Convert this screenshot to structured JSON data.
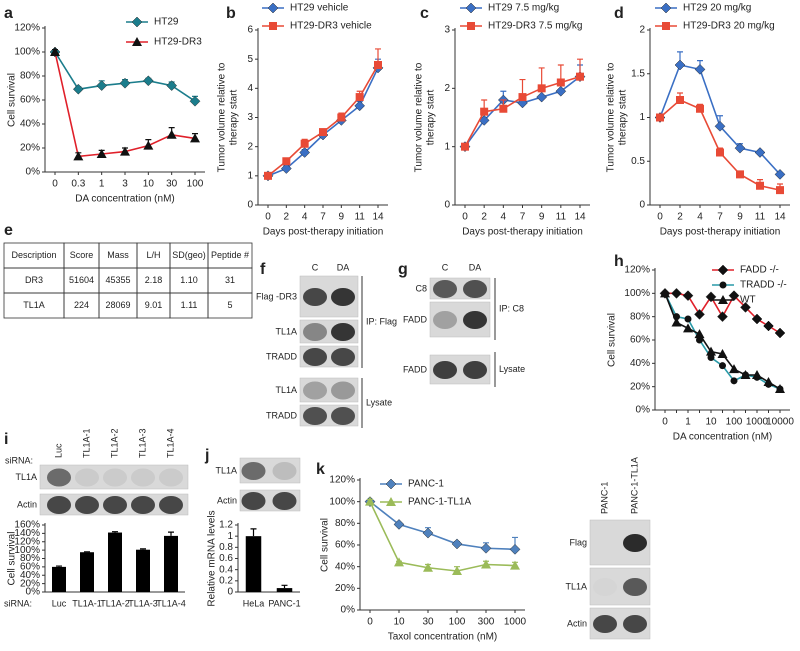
{
  "chart_data": [
    {
      "label": "a",
      "type": "line",
      "ylabel": "Cell survival",
      "xlabel": "DA concentration (nM)",
      "categories": [
        "0",
        "0.3",
        "1",
        "3",
        "10",
        "30",
        "100"
      ],
      "ylim": [
        0,
        120
      ],
      "yticks": [
        {
          "value": 0,
          "label": "0%"
        },
        {
          "value": 20,
          "label": "20%"
        },
        {
          "value": 40,
          "label": "40%"
        },
        {
          "value": 60,
          "label": "60%"
        },
        {
          "value": 80,
          "label": "80%"
        },
        {
          "value": 100,
          "label": "100%"
        },
        {
          "value": 120,
          "label": "120%"
        }
      ],
      "series": [
        {
          "name": "HT29",
          "color": "#1b7d8c",
          "marker": "diamond",
          "marker_color": "#1b7d8c",
          "values": [
            100,
            69,
            72,
            74,
            76,
            72,
            59
          ],
          "errors": [
            2,
            2,
            4,
            3,
            2,
            3,
            4
          ]
        },
        {
          "name": "HT29-DR3",
          "color": "#e0202a",
          "marker": "triangle",
          "marker_color": "#111111",
          "values": [
            100,
            13,
            15,
            17,
            22,
            31,
            28
          ],
          "errors": [
            2,
            3,
            3,
            3,
            5,
            6,
            4
          ]
        }
      ]
    },
    {
      "label": "b",
      "type": "line",
      "ylabel": [
        "Tumor volume relative to",
        "therapy start"
      ],
      "xlabel": "Days post-therapy initiation",
      "categories": [
        "0",
        "2",
        "4",
        "7",
        "9",
        "11",
        "14"
      ],
      "ylim": [
        0,
        6
      ],
      "yticks": [
        0,
        1,
        2,
        3,
        4,
        5,
        6
      ],
      "series": [
        {
          "name": "HT29 vehicle",
          "color": "#3a6fc4",
          "marker": "diamond",
          "values": [
            1,
            1.25,
            1.8,
            2.4,
            2.9,
            3.4,
            4.7
          ],
          "errors": [
            0.05,
            0.1,
            0.1,
            0.1,
            0.1,
            0.15,
            0.3
          ]
        },
        {
          "name": "HT29-DR3 vehicle",
          "color": "#e84a36",
          "marker": "square",
          "values": [
            1,
            1.5,
            2.1,
            2.5,
            3.0,
            3.7,
            4.8
          ],
          "errors": [
            0.05,
            0.1,
            0.15,
            0.1,
            0.15,
            0.2,
            0.55
          ]
        }
      ]
    },
    {
      "label": "c",
      "type": "line",
      "ylabel": [
        "Tumor volume relative to",
        "therapy start"
      ],
      "xlabel": "Days post-therapy initiation",
      "categories": [
        "0",
        "2",
        "4",
        "7",
        "9",
        "11",
        "14"
      ],
      "ylim": [
        0,
        3
      ],
      "yticks": [
        0,
        1,
        2,
        3
      ],
      "series": [
        {
          "name": "HT29 7.5 mg/kg",
          "color": "#3a6fc4",
          "marker": "diamond",
          "values": [
            1,
            1.45,
            1.8,
            1.75,
            1.85,
            1.95,
            2.2
          ],
          "errors": [
            0.02,
            0.1,
            0.15,
            0.1,
            0.15,
            0.15,
            0.2
          ]
        },
        {
          "name": "HT29-DR3 7.5 mg/kg",
          "color": "#e84a36",
          "marker": "square",
          "values": [
            1,
            1.6,
            1.65,
            1.85,
            2.0,
            2.1,
            2.2
          ],
          "errors": [
            0.02,
            0.2,
            0.15,
            0.3,
            0.35,
            0.3,
            0.3
          ]
        }
      ]
    },
    {
      "label": "d",
      "type": "line",
      "ylabel": [
        "Tumor volume relative to",
        "therapy start"
      ],
      "xlabel": "Days post-therapy initiation",
      "categories": [
        "0",
        "2",
        "4",
        "7",
        "9",
        "11",
        "14"
      ],
      "ylim": [
        0,
        2
      ],
      "yticks": [
        0,
        0.5,
        1,
        1.5,
        2
      ],
      "series": [
        {
          "name": "HT29 20 mg/kg",
          "color": "#3a6fc4",
          "marker": "diamond",
          "values": [
            1,
            1.6,
            1.55,
            0.9,
            0.65,
            0.6,
            0.35
          ],
          "errors": [
            0.02,
            0.15,
            0.1,
            0.12,
            0.05,
            0.02,
            0.02
          ]
        },
        {
          "name": "HT29-DR3 20 mg/kg",
          "color": "#e84a36",
          "marker": "square",
          "values": [
            1,
            1.2,
            1.1,
            0.6,
            0.35,
            0.22,
            0.17
          ],
          "errors": [
            0.02,
            0.08,
            0.05,
            0.05,
            0.03,
            0.07,
            0.07
          ]
        }
      ]
    },
    {
      "label": "h",
      "type": "line",
      "ylabel": "Cell survival",
      "xlabel": "DA concentration (nM)",
      "categories": [
        "0",
        null,
        "1",
        null,
        "10",
        null,
        "100",
        null,
        "1000",
        null,
        "10000"
      ],
      "ylim": [
        0,
        120
      ],
      "yticks": [
        {
          "value": 0,
          "label": "0%"
        },
        {
          "value": 20,
          "label": "20%"
        },
        {
          "value": 40,
          "label": "40%"
        },
        {
          "value": 60,
          "label": "60%"
        },
        {
          "value": 80,
          "label": "80%"
        },
        {
          "value": 100,
          "label": "100%"
        },
        {
          "value": 120,
          "label": "120%"
        }
      ],
      "series": [
        {
          "name": "FADD -/-",
          "color": "#e0202a",
          "marker": "diamond",
          "marker_color": "#111111",
          "values": [
            100,
            100,
            98,
            82,
            97,
            80,
            98,
            88,
            78,
            72,
            66
          ]
        },
        {
          "name": "TRADD -/-",
          "color": "#2a9aa8",
          "marker": "circle",
          "marker_color": "#111111",
          "values": [
            100,
            80,
            78,
            60,
            45,
            38,
            25,
            30,
            28,
            22,
            18
          ]
        },
        {
          "name": "WT",
          "color": "#111111",
          "marker": "triangle",
          "marker_color": "#111111",
          "values": [
            100,
            75,
            70,
            65,
            50,
            48,
            35,
            30,
            30,
            24,
            18
          ]
        }
      ]
    },
    {
      "label": "i",
      "type": "bar",
      "ylabel": "Cell survival",
      "xlabel": "siRNA:",
      "color": "#000000",
      "categories": [
        "Luc",
        "TL1A-1",
        "TL1A-2",
        "TL1A-3",
        "TL1A-4"
      ],
      "values": [
        60,
        95,
        142,
        101,
        134
      ],
      "errors": [
        2,
        1,
        2,
        2,
        9
      ],
      "ylim": [
        0,
        160
      ],
      "yticks": [
        {
          "value": 0,
          "label": "0%"
        },
        {
          "value": 20,
          "label": "20%"
        },
        {
          "value": 40,
          "label": "40%"
        },
        {
          "value": 60,
          "label": "60%"
        },
        {
          "value": 80,
          "label": "80%"
        },
        {
          "value": 100,
          "label": "100%"
        },
        {
          "value": 120,
          "label": "120%"
        },
        {
          "value": 140,
          "label": "140%"
        },
        {
          "value": 160,
          "label": "160%"
        }
      ]
    },
    {
      "label": "j",
      "type": "bar",
      "ylabel": "Relative mRNA levels",
      "color": "#000000",
      "categories": [
        "HeLa",
        "PANC-1"
      ],
      "values": [
        1.0,
        0.07
      ],
      "errors": [
        0.13,
        0.05
      ],
      "ylim": [
        0,
        1.2
      ],
      "yticks": [
        0,
        0.2,
        0.4,
        0.6,
        0.8,
        1,
        1.2
      ]
    },
    {
      "label": "k",
      "type": "line",
      "ylabel": "Cell survival",
      "xlabel": "Taxol concentration (nM)",
      "categories": [
        "0",
        "10",
        "30",
        "100",
        "300",
        "1000"
      ],
      "ylim": [
        0,
        120
      ],
      "yticks": [
        {
          "value": 0,
          "label": "0%"
        },
        {
          "value": 20,
          "label": "20%"
        },
        {
          "value": 40,
          "label": "40%"
        },
        {
          "value": 60,
          "label": "60%"
        },
        {
          "value": 80,
          "label": "80%"
        },
        {
          "value": 100,
          "label": "100%"
        },
        {
          "value": 120,
          "label": "120%"
        }
      ],
      "series": [
        {
          "name": "PANC-1",
          "color": "#4f81bd",
          "marker": "diamond",
          "values": [
            100,
            79,
            71,
            61,
            57,
            56
          ],
          "errors": [
            2,
            1,
            5,
            2,
            5,
            11
          ]
        },
        {
          "name": "PANC-1-TL1A",
          "color": "#9bbb59",
          "marker": "triangle",
          "values": [
            100,
            44,
            39,
            36,
            42,
            41
          ],
          "errors": [
            2,
            1,
            3,
            4,
            3,
            3
          ]
        }
      ]
    }
  ],
  "table": {
    "label": "e",
    "header": [
      "Description",
      "Score",
      "Mass",
      "L/H",
      "SD(geo)",
      "Peptide #"
    ],
    "rows": [
      [
        "DR3",
        "51604",
        "45355",
        "2.18",
        "1.10",
        "31"
      ],
      [
        "TL1A",
        "224",
        "28069",
        "9.01",
        "1.11",
        "5"
      ]
    ]
  },
  "blots": [
    {
      "label": "f",
      "lanes": [
        "C",
        "DA"
      ],
      "rows": [
        "Flag -DR3",
        "TL1A",
        "TRADD",
        "TL1A",
        "TRADD"
      ],
      "groups": [
        "IP: Flag",
        "Lysate"
      ]
    },
    {
      "label": "g",
      "lanes": [
        "C",
        "DA"
      ],
      "rows": [
        "C8",
        "FADD",
        "FADD"
      ],
      "groups": [
        "IP: C8",
        "Lysate"
      ]
    },
    {
      "rows": [
        "TL1A",
        "Actin"
      ]
    },
    {
      "rows": [
        "TL1A",
        "Actin"
      ]
    },
    {
      "lanes": [
        "PANC-1",
        "PANC-1-TL1A"
      ],
      "rows": [
        "Flag",
        "TL1A",
        "Actin"
      ]
    }
  ]
}
